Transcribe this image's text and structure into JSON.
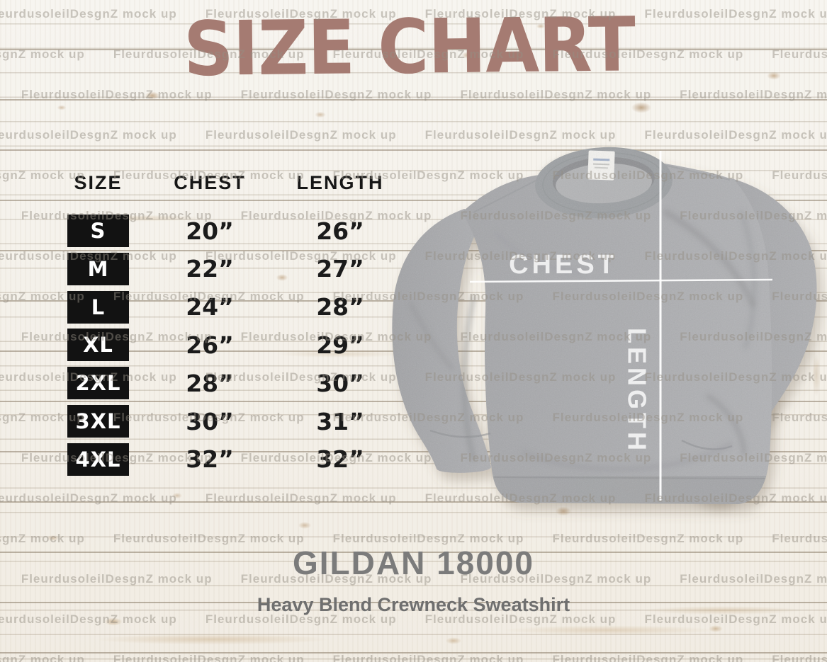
{
  "title": "SIZE CHART",
  "size_table": {
    "headers": [
      "SIZE",
      "CHEST",
      "LENGTH"
    ],
    "rows": [
      {
        "size": "S",
        "chest": "20”",
        "length": "26”"
      },
      {
        "size": "M",
        "chest": "22”",
        "length": "27”"
      },
      {
        "size": "L",
        "chest": "24”",
        "length": "28”"
      },
      {
        "size": "XL",
        "chest": "26”",
        "length": "29”"
      },
      {
        "size": "2XL",
        "chest": "28”",
        "length": "30”"
      },
      {
        "size": "3XL",
        "chest": "30”",
        "length": "31”"
      },
      {
        "size": "4XL",
        "chest": "32”",
        "length": "32”"
      }
    ]
  },
  "garment": {
    "chest_label": "CHEST",
    "length_label": "LENGTH"
  },
  "footer": {
    "product_name": "GILDAN 18000",
    "product_subtitle": "Heavy Blend Crewneck Sweatshirt"
  },
  "watermark": {
    "text": "FleurdusoleilDesgnZ mock up"
  },
  "colors": {
    "title": "#a57b72",
    "size_box_bg": "#121212",
    "size_box_text": "#ffffff",
    "table_text": "#1b1b1b",
    "footer_text": "#7b7b7b",
    "sweatshirt_gray": "#a9aaac",
    "measure_line": "#ffffff"
  },
  "chart_data": {
    "type": "table",
    "title": "SIZE CHART",
    "columns": [
      "SIZE",
      "CHEST",
      "LENGTH"
    ],
    "units": "inches",
    "rows": [
      [
        "S",
        "20”",
        "26”"
      ],
      [
        "M",
        "22”",
        "27”"
      ],
      [
        "L",
        "24”",
        "28”"
      ],
      [
        "XL",
        "26”",
        "29”"
      ],
      [
        "2XL",
        "28”",
        "30”"
      ],
      [
        "3XL",
        "30”",
        "31”"
      ],
      [
        "4XL",
        "32”",
        "32”"
      ]
    ],
    "footer": [
      "GILDAN 18000",
      "Heavy Blend Crewneck Sweatshirt"
    ]
  }
}
